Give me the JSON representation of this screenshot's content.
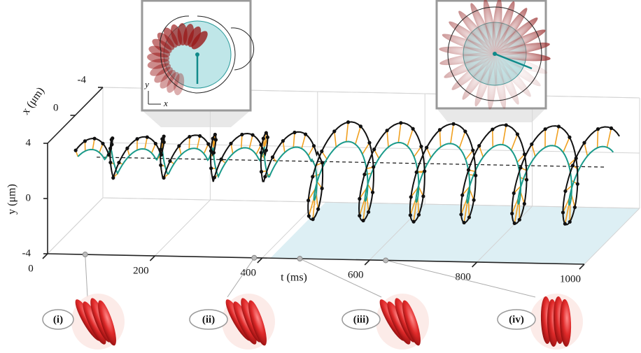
{
  "chart_data": {
    "type": "line3d",
    "xlabel": "t (ms)",
    "ylabel": "y (μm)",
    "zlabel": "x (μm)",
    "tlim": [
      0,
      1000
    ],
    "tticks": [
      0,
      200,
      400,
      600,
      800,
      1000
    ],
    "ylim": [
      -4,
      4
    ],
    "yticks": [
      4,
      0,
      -4
    ],
    "xlim": [
      -4,
      4
    ],
    "xticks": [
      -4,
      0
    ],
    "inset_xlabel": "x",
    "inset_ylabel": "y",
    "snapshots": [
      "(i)",
      "(ii)",
      "(iii)",
      "(iv)"
    ],
    "snapshot_t": [
      70,
      385,
      470,
      630
    ]
  }
}
